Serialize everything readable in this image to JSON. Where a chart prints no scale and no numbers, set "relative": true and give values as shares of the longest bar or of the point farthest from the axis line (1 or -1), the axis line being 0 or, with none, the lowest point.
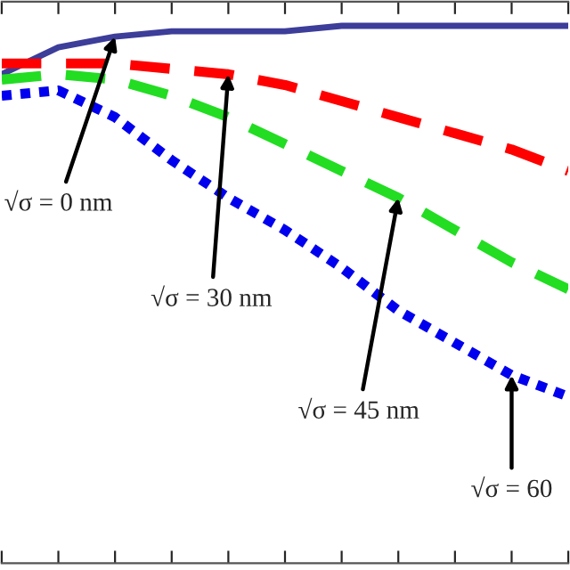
{
  "chart_data": {
    "type": "line",
    "relative": true,
    "categories": [
      null,
      null,
      null,
      null,
      null,
      null,
      null,
      null,
      null,
      null,
      null
    ],
    "series": [
      {
        "color": "#3d3d9a",
        "line_style": "solid",
        "values": [
          0.91,
          0.96,
          0.98,
          0.99,
          0.99,
          0.99,
          1.0,
          1.0,
          1.0,
          1.0,
          1.0
        ]
      },
      {
        "color": "#ff0000",
        "line_style": "dashed",
        "values": [
          0.93,
          0.93,
          0.93,
          0.92,
          0.91,
          0.89,
          0.86,
          0.83,
          0.8,
          0.77,
          0.73
        ]
      },
      {
        "color": "#22dd22",
        "line_style": "dashed",
        "values": [
          0.9,
          0.91,
          0.9,
          0.87,
          0.83,
          0.78,
          0.73,
          0.68,
          0.62,
          0.56,
          0.51
        ]
      },
      {
        "color": "#0000ee",
        "line_style": "dotted",
        "values": [
          0.87,
          0.88,
          0.83,
          0.75,
          0.68,
          0.62,
          0.55,
          0.47,
          0.41,
          0.35,
          0.31
        ]
      }
    ],
    "annotations": [
      "√σ = 0 nm",
      "√σ = 30 nm",
      "√σ = 45 nm",
      "√σ = 60"
    ],
    "grid": false
  }
}
